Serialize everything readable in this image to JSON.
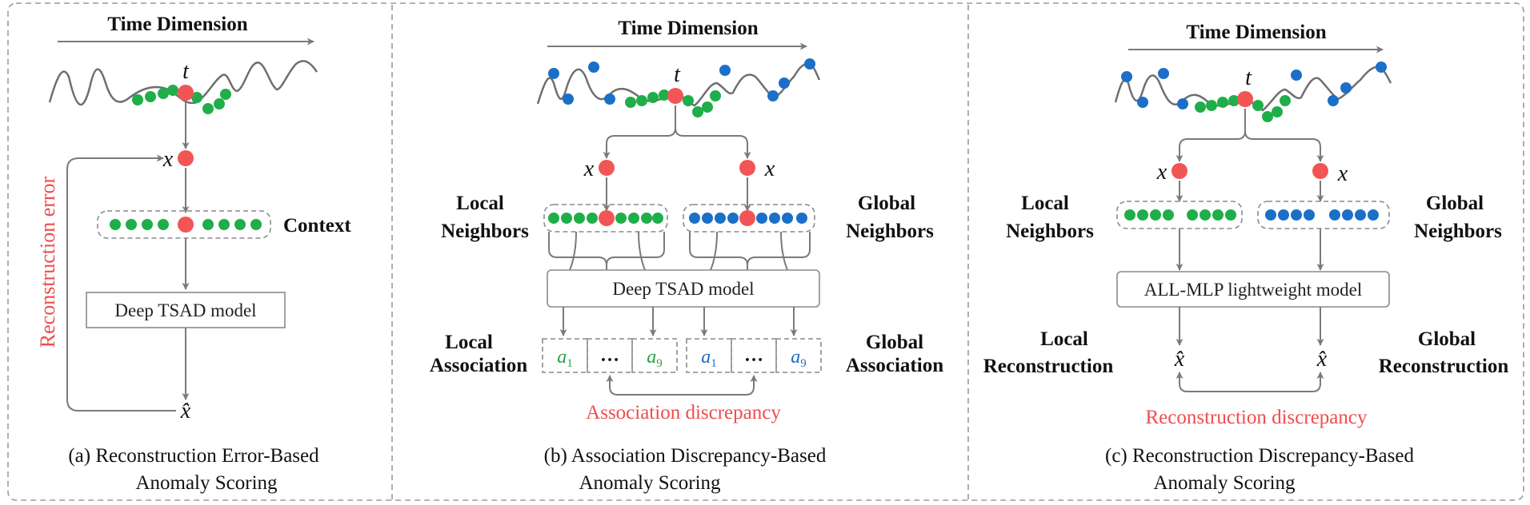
{
  "colors": {
    "red": "#f25555",
    "green": "#1fae4a",
    "blue": "#1b6fc8",
    "line": "#7a7a7a",
    "dash": "#9a9a9a",
    "red_text": "#f04c4c",
    "a_green": "#2aa04a",
    "a_blue": "#1f6cc4"
  },
  "common": {
    "time_dimension": "Time Dimension",
    "t": "t",
    "x": "x",
    "x_hat": "x̂",
    "ellipsis": "…",
    "a1_base": "a",
    "a1_sub": "1",
    "a9_base": "a",
    "a9_sub": "9"
  },
  "panel_a": {
    "error_label": "Reconstruction error",
    "context_label": "Context",
    "model_label": "Deep TSAD model",
    "caption_line1": "(a)  Reconstruction Error-Based",
    "caption_line2": "Anomaly Scoring"
  },
  "panel_b": {
    "local_neighbors_1": "Local",
    "local_neighbors_2": "Neighbors",
    "global_neighbors_1": "Global",
    "global_neighbors_2": "Neighbors",
    "model_label": "Deep TSAD model",
    "local_assoc_1": "Local",
    "local_assoc_2": "Association",
    "global_assoc_1": "Global",
    "global_assoc_2": "Association",
    "discrepancy_label": "Association discrepancy",
    "caption_line1": "(b)  Association Discrepancy-Based",
    "caption_line2": "Anomaly Scoring"
  },
  "panel_c": {
    "local_neighbors_1": "Local",
    "local_neighbors_2": "Neighbors",
    "global_neighbors_1": "Global",
    "global_neighbors_2": "Neighbors",
    "model_label": "ALL-MLP lightweight model",
    "local_recon_1": "Local",
    "local_recon_2": "Reconstruction",
    "global_recon_1": "Global",
    "global_recon_2": "Reconstruction",
    "discrepancy_label": "Reconstruction discrepancy",
    "caption_line1": "(c)  Reconstruction Discrepancy-Based",
    "caption_line2": "Anomaly Scoring"
  }
}
